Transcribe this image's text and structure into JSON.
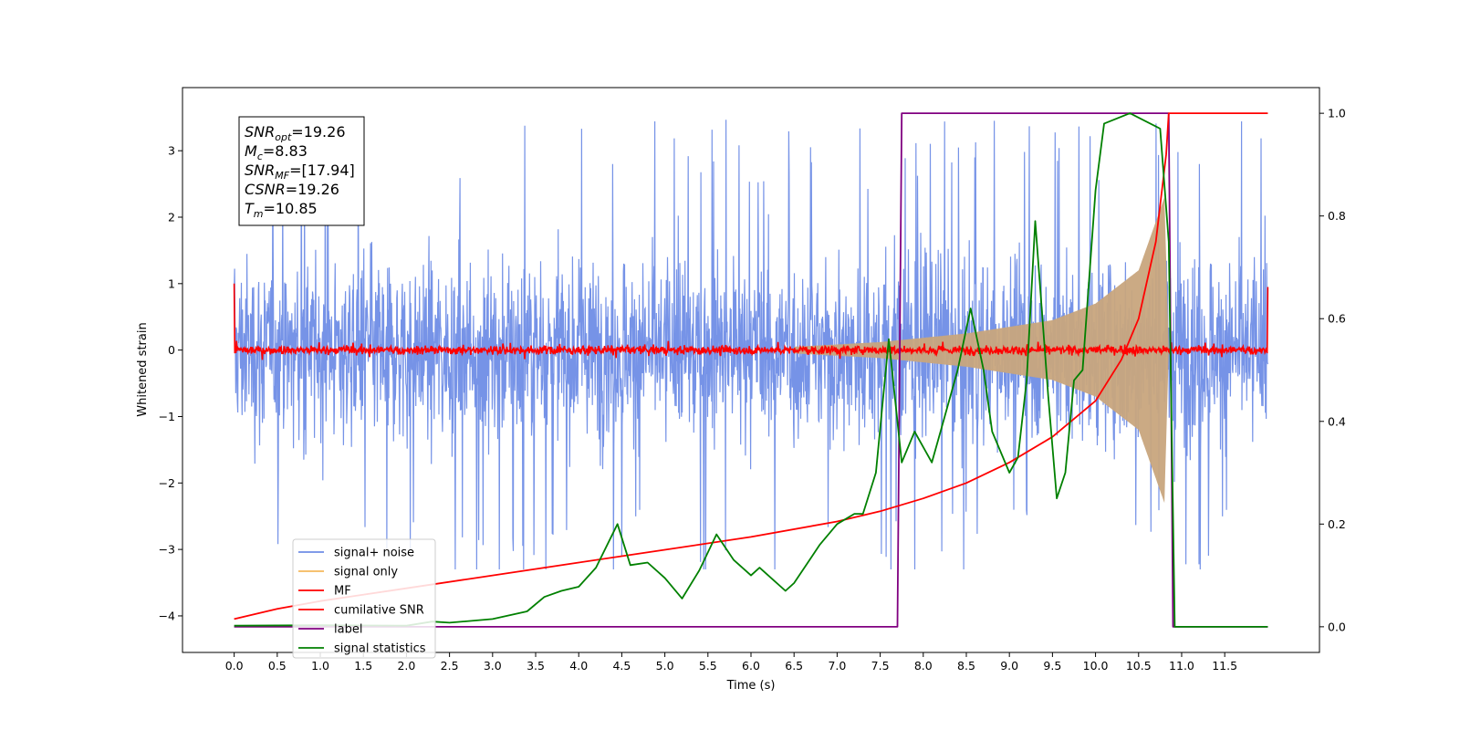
{
  "chart_data": {
    "type": "line",
    "xlabel": "Time (s)",
    "ylabel": "Whitened strain",
    "xlim": [
      -0.6,
      12.6
    ],
    "ylim": [
      -4.55,
      3.95
    ],
    "ylim_right": [
      -0.05,
      1.05
    ],
    "xticks": [
      0.0,
      0.5,
      1.0,
      1.5,
      2.0,
      2.5,
      3.0,
      3.5,
      4.0,
      4.5,
      5.0,
      5.5,
      6.0,
      6.5,
      7.0,
      7.5,
      8.0,
      8.5,
      9.0,
      9.5,
      10.0,
      10.5,
      11.0,
      11.5
    ],
    "xtick_labels": [
      "0.0",
      "0.5",
      "1.0",
      "1.5",
      "2.0",
      "2.5",
      "3.0",
      "3.5",
      "4.0",
      "4.5",
      "5.0",
      "5.5",
      "6.0",
      "6.5",
      "7.0",
      "7.5",
      "8.0",
      "8.5",
      "9.0",
      "9.5",
      "10.0",
      "10.5",
      "11.0",
      "11.5"
    ],
    "yticks_left": [
      -4,
      -3,
      -2,
      -1,
      0,
      1,
      2,
      3
    ],
    "ytick_labels_left": [
      "−4",
      "−3",
      "−2",
      "−1",
      "0",
      "1",
      "2",
      "3"
    ],
    "yticks_right": [
      0.0,
      0.2,
      0.4,
      0.6,
      0.8,
      1.0
    ],
    "ytick_labels_right": [
      "0.0",
      "0.2",
      "0.4",
      "0.6",
      "0.8",
      "1.0"
    ],
    "grid": false,
    "legend_position": "lower-left",
    "legend": [
      {
        "label": "signal+ noise",
        "color": "#6f8de6"
      },
      {
        "label": "signal only",
        "color": "#f5b85c"
      },
      {
        "label": "MF",
        "color": "#ff0000"
      },
      {
        "label": "cumilative SNR",
        "color": "#ff0000"
      },
      {
        "label": "label",
        "color": "#800080"
      },
      {
        "label": "signal statistics",
        "color": "#008000"
      }
    ],
    "annotation": [
      {
        "name": "SNR",
        "sub": "opt",
        "value": "=19.26"
      },
      {
        "name": "M",
        "sub": "c",
        "value": "=8.83"
      },
      {
        "name": "SNR",
        "sub": "MF",
        "value": "=[17.94]"
      },
      {
        "name": "CSNR",
        "sub": "",
        "value": "=19.26"
      },
      {
        "name": "T",
        "sub": "m",
        "value": "=10.85"
      }
    ],
    "series": [
      {
        "name": "signal+ noise",
        "axis": "left",
        "color": "#6f8de6",
        "description": "noise band, mostly within -2.5..2.5 with spikes up to ~3.5, over t 0..12",
        "t_range": [
          0,
          12
        ],
        "envelope": [
          -2.5,
          2.5
        ]
      },
      {
        "name": "signal only",
        "axis": "left",
        "color": "#f5b85c",
        "description": "chirp waveform growing toward t ~10.85",
        "amplitude_points": [
          [
            6.5,
            0.05
          ],
          [
            7.5,
            0.12
          ],
          [
            8.5,
            0.25
          ],
          [
            9.5,
            0.45
          ],
          [
            10.0,
            0.7
          ],
          [
            10.5,
            1.2
          ],
          [
            10.8,
            2.3
          ],
          [
            10.85,
            0.0
          ]
        ]
      },
      {
        "name": "MF",
        "axis": "left",
        "color": "#ff0000",
        "description": "matched-filter output near 0 with small noise (±0.15), edge values ~1.0",
        "t_range": [
          0,
          12
        ],
        "edge_values": [
          1.0,
          0.95
        ]
      },
      {
        "name": "cumilative SNR",
        "axis": "right",
        "color": "#ff0000",
        "points": [
          [
            0.0,
            0.015
          ],
          [
            0.5,
            0.035
          ],
          [
            1.0,
            0.05
          ],
          [
            2.0,
            0.075
          ],
          [
            3.0,
            0.1
          ],
          [
            4.0,
            0.125
          ],
          [
            5.0,
            0.15
          ],
          [
            6.0,
            0.175
          ],
          [
            7.0,
            0.205
          ],
          [
            7.5,
            0.225
          ],
          [
            8.0,
            0.25
          ],
          [
            8.5,
            0.28
          ],
          [
            9.0,
            0.32
          ],
          [
            9.5,
            0.37
          ],
          [
            10.0,
            0.44
          ],
          [
            10.3,
            0.52
          ],
          [
            10.5,
            0.6
          ],
          [
            10.7,
            0.75
          ],
          [
            10.82,
            0.92
          ],
          [
            10.85,
            1.0
          ],
          [
            12.0,
            1.0
          ]
        ]
      },
      {
        "name": "label",
        "axis": "right",
        "color": "#800080",
        "points": [
          [
            0.0,
            0.0
          ],
          [
            7.7,
            0.0
          ],
          [
            7.75,
            1.0
          ],
          [
            10.85,
            1.0
          ],
          [
            10.9,
            0.0
          ],
          [
            12.0,
            0.0
          ]
        ]
      },
      {
        "name": "signal statistics",
        "axis": "right",
        "color": "#008000",
        "points": [
          [
            0.0,
            0.002
          ],
          [
            1.0,
            0.003
          ],
          [
            2.0,
            0.002
          ],
          [
            2.3,
            0.01
          ],
          [
            2.5,
            0.008
          ],
          [
            3.0,
            0.015
          ],
          [
            3.4,
            0.03
          ],
          [
            3.6,
            0.058
          ],
          [
            3.8,
            0.07
          ],
          [
            4.0,
            0.078
          ],
          [
            4.2,
            0.115
          ],
          [
            4.45,
            0.2
          ],
          [
            4.6,
            0.12
          ],
          [
            4.8,
            0.125
          ],
          [
            5.0,
            0.095
          ],
          [
            5.2,
            0.055
          ],
          [
            5.4,
            0.11
          ],
          [
            5.6,
            0.18
          ],
          [
            5.8,
            0.13
          ],
          [
            6.0,
            0.1
          ],
          [
            6.1,
            0.115
          ],
          [
            6.4,
            0.07
          ],
          [
            6.5,
            0.085
          ],
          [
            6.8,
            0.16
          ],
          [
            7.0,
            0.2
          ],
          [
            7.2,
            0.22
          ],
          [
            7.3,
            0.22
          ],
          [
            7.45,
            0.3
          ],
          [
            7.6,
            0.56
          ],
          [
            7.75,
            0.32
          ],
          [
            7.9,
            0.38
          ],
          [
            8.1,
            0.32
          ],
          [
            8.2,
            0.38
          ],
          [
            8.4,
            0.5
          ],
          [
            8.55,
            0.62
          ],
          [
            8.7,
            0.5
          ],
          [
            8.8,
            0.38
          ],
          [
            9.0,
            0.3
          ],
          [
            9.1,
            0.33
          ],
          [
            9.2,
            0.48
          ],
          [
            9.3,
            0.79
          ],
          [
            9.45,
            0.45
          ],
          [
            9.55,
            0.25
          ],
          [
            9.65,
            0.3
          ],
          [
            9.75,
            0.48
          ],
          [
            9.85,
            0.5
          ],
          [
            10.0,
            0.85
          ],
          [
            10.1,
            0.98
          ],
          [
            10.4,
            1.0
          ],
          [
            10.75,
            0.97
          ],
          [
            10.85,
            0.75
          ],
          [
            10.92,
            0.0
          ],
          [
            12.0,
            0.0
          ]
        ]
      }
    ]
  }
}
